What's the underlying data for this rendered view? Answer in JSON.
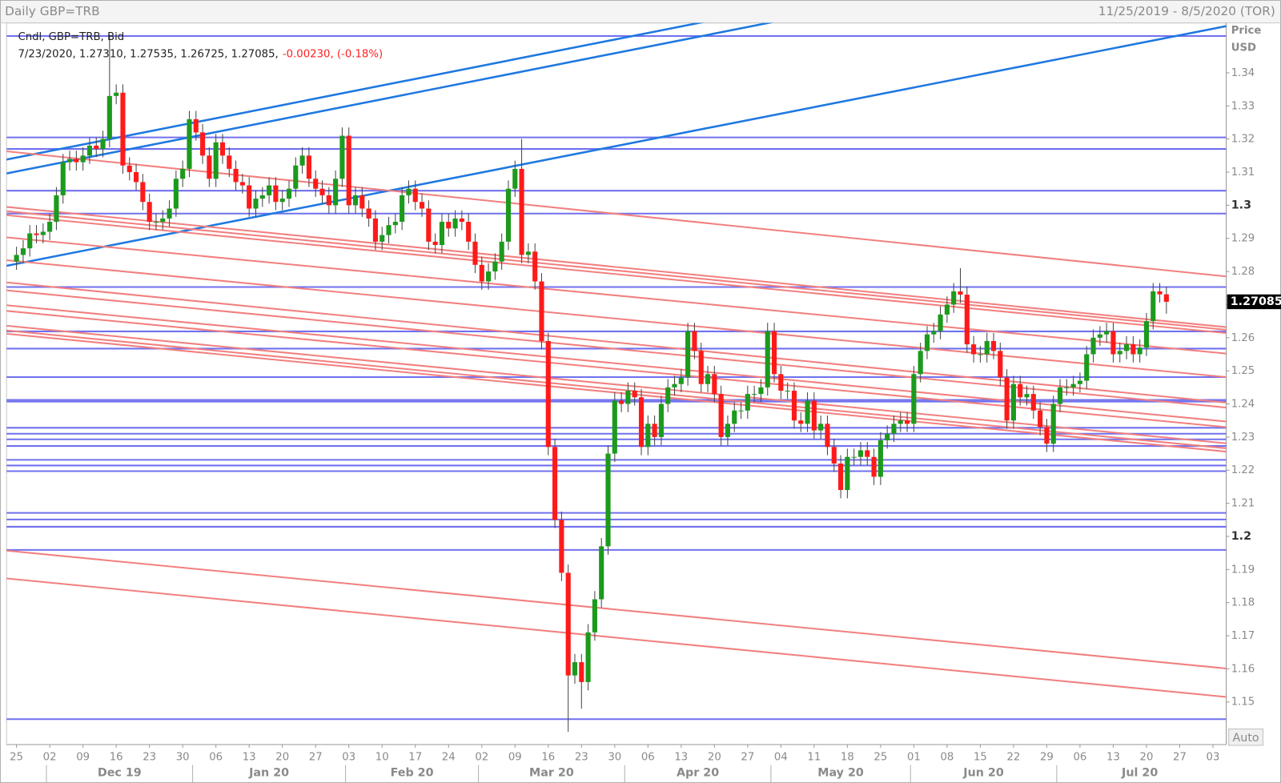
{
  "chart_data": {
    "type": "candlestick",
    "title": "Daily GBP=TRB",
    "date_range": "11/25/2019 - 8/5/2020 (TOR)",
    "legend": "Cndl, GBP=TRB, Bid",
    "info": "7/23/2020, 1.27310, 1.27535, 1.26725, 1.27085,",
    "change": "-0.00230, (-0.18%)",
    "y_label": "Price",
    "y_unit": "USD",
    "button": "Auto",
    "last_price_label": "1.27085",
    "up_color": "#1c9a1c",
    "down_color": "#ff1a1a",
    "xlim": [
      -1.5,
      182
    ],
    "ylim": [
      1.13713,
      1.35507
    ],
    "yticks": [
      1.15,
      1.16,
      1.17,
      1.18,
      1.19,
      1.2,
      1.21,
      1.22,
      1.23,
      1.24,
      1.25,
      1.26,
      1.27,
      1.28,
      1.29,
      1.3,
      1.31,
      1.32,
      1.33,
      1.34
    ],
    "xticks": [
      {
        "value": 0,
        "label": "25"
      },
      {
        "value": 5,
        "label": "02"
      },
      {
        "value": 10,
        "label": "09"
      },
      {
        "value": 15,
        "label": "16"
      },
      {
        "value": 20,
        "label": "23"
      },
      {
        "value": 25,
        "label": "30"
      },
      {
        "value": 30,
        "label": "06"
      },
      {
        "value": 35,
        "label": "13"
      },
      {
        "value": 40,
        "label": "20"
      },
      {
        "value": 45,
        "label": "27"
      },
      {
        "value": 50,
        "label": "03"
      },
      {
        "value": 55,
        "label": "10"
      },
      {
        "value": 60,
        "label": "17"
      },
      {
        "value": 65,
        "label": "24"
      },
      {
        "value": 70,
        "label": "02"
      },
      {
        "value": 75,
        "label": "09"
      },
      {
        "value": 80,
        "label": "16"
      },
      {
        "value": 85,
        "label": "23"
      },
      {
        "value": 90,
        "label": "30"
      },
      {
        "value": 95,
        "label": "06"
      },
      {
        "value": 100,
        "label": "13"
      },
      {
        "value": 105,
        "label": "20"
      },
      {
        "value": 110,
        "label": "27"
      },
      {
        "value": 115,
        "label": "04"
      },
      {
        "value": 120,
        "label": "11"
      },
      {
        "value": 125,
        "label": "18"
      },
      {
        "value": 130,
        "label": "25"
      },
      {
        "value": 135,
        "label": "01"
      },
      {
        "value": 140,
        "label": "08"
      },
      {
        "value": 145,
        "label": "15"
      },
      {
        "value": 150,
        "label": "22"
      },
      {
        "value": 155,
        "label": "29"
      },
      {
        "value": 160,
        "label": "06"
      },
      {
        "value": 165,
        "label": "13"
      },
      {
        "value": 170,
        "label": "20"
      },
      {
        "value": 175,
        "label": "27"
      },
      {
        "value": 180,
        "label": "03"
      }
    ],
    "month_ticks": [
      {
        "value": 5,
        "label": "Dec 19"
      },
      {
        "value": 27,
        "label": "Jan 20"
      },
      {
        "value": 50,
        "label": "Feb 20"
      },
      {
        "value": 70,
        "label": "Mar 20"
      },
      {
        "value": 92,
        "label": "Apr 20"
      },
      {
        "value": 114,
        "label": "May 20"
      },
      {
        "value": 135,
        "label": "Jun 20"
      },
      {
        "value": 157,
        "label": "Jul 20"
      }
    ],
    "hlines": {
      "color": "#7070ee",
      "values": [
        1.3511,
        1.3205,
        1.317,
        1.3044,
        1.2975,
        1.2753,
        1.2619,
        1.2567,
        1.2481,
        1.2412,
        1.2407,
        1.2328,
        1.231,
        1.2293,
        1.2273,
        1.2231,
        1.2214,
        1.2197,
        1.2071,
        1.2051,
        1.2029,
        1.1959,
        1.1448
      ]
    },
    "trendlines": [
      {
        "color": "#1f78e0",
        "lines": [
          [
            1.3138,
            1.3865
          ],
          [
            1.3096,
            1.3824
          ],
          [
            1.2817,
            1.3541
          ]
        ]
      },
      {
        "color": "#f27f7f",
        "lines": [
          [
            1.3163,
            1.2785
          ],
          [
            1.2995,
            1.2632
          ],
          [
            1.2982,
            1.2624
          ],
          [
            1.297,
            1.2614
          ],
          [
            1.2903,
            1.2552
          ],
          [
            1.2834,
            1.2481
          ],
          [
            1.2767,
            1.2404
          ],
          [
            1.2743,
            1.2389
          ],
          [
            1.2698,
            1.2347
          ],
          [
            1.2681,
            1.233
          ],
          [
            1.2636,
            1.2281
          ],
          [
            1.2622,
            1.2266
          ],
          [
            1.2612,
            1.2256
          ],
          [
            1.1957,
            1.1601
          ],
          [
            1.1873,
            1.1515
          ]
        ]
      }
    ],
    "open": [
      1.283,
      1.285,
      1.287,
      1.2915,
      1.291,
      1.292,
      1.295,
      1.303,
      1.313,
      1.314,
      1.313,
      1.315,
      1.318,
      1.317,
      1.32,
      1.333,
      1.334,
      1.312,
      1.31,
      1.307,
      1.301,
      1.295,
      1.295,
      1.296,
      1.299,
      1.308,
      1.311,
      1.326,
      1.322,
      1.315,
      1.308,
      1.319,
      1.315,
      1.311,
      1.307,
      1.306,
      1.299,
      1.302,
      1.303,
      1.306,
      1.301,
      1.302,
      1.305,
      1.312,
      1.315,
      1.308,
      1.305,
      1.303,
      1.3,
      1.308,
      1.321,
      1.3,
      1.303,
      1.299,
      1.296,
      1.289,
      1.291,
      1.294,
      1.295,
      1.303,
      1.305,
      1.301,
      1.299,
      1.289,
      1.288,
      1.295,
      1.293,
      1.296,
      1.295,
      1.289,
      1.282,
      1.277,
      1.28,
      1.283,
      1.289,
      1.305,
      1.311,
      1.285,
      1.286,
      1.277,
      1.259,
      1.227,
      1.205,
      1.189,
      1.158,
      1.162,
      1.156,
      1.171,
      1.181,
      1.197,
      1.225,
      1.241,
      1.24,
      1.244,
      1.242,
      1.227,
      1.234,
      1.23,
      1.24,
      1.245,
      1.246,
      1.248,
      1.262,
      1.256,
      1.246,
      1.249,
      1.243,
      1.23,
      1.234,
      1.238,
      1.238,
      1.243,
      1.243,
      1.245,
      1.262,
      1.249,
      1.244,
      1.244,
      1.235,
      1.234,
      1.241,
      1.232,
      1.234,
      1.227,
      1.222,
      1.214,
      1.224,
      1.224,
      1.226,
      1.224,
      1.218,
      1.229,
      1.231,
      1.234,
      1.235,
      1.234,
      1.249,
      1.256,
      1.261,
      1.262,
      1.267,
      1.27,
      1.274,
      1.273,
      1.258,
      1.255,
      1.255,
      1.259,
      1.256,
      1.248,
      1.235,
      1.246,
      1.242,
      1.243,
      1.238,
      1.233,
      1.228,
      1.24,
      1.245,
      1.245,
      1.246,
      1.247,
      1.255,
      1.26,
      1.261,
      1.262,
      1.255,
      1.256,
      1.258,
      1.255,
      1.257,
      1.265,
      1.274,
      1.2731
    ],
    "high": [
      1.2875,
      1.2895,
      1.294,
      1.294,
      1.2945,
      1.2975,
      1.3055,
      1.3155,
      1.3165,
      1.3165,
      1.3175,
      1.3205,
      1.3205,
      1.3225,
      1.3515,
      1.3365,
      1.3365,
      1.3145,
      1.3125,
      1.3095,
      1.3035,
      1.2975,
      1.2985,
      1.3015,
      1.3105,
      1.3135,
      1.3285,
      1.3285,
      1.3245,
      1.3175,
      1.3215,
      1.3215,
      1.3175,
      1.3135,
      1.3095,
      1.3085,
      1.3045,
      1.3055,
      1.3085,
      1.3085,
      1.3045,
      1.3075,
      1.3145,
      1.3175,
      1.3175,
      1.3105,
      1.3075,
      1.3055,
      1.3105,
      1.3235,
      1.3235,
      1.3055,
      1.3055,
      1.3015,
      1.2985,
      1.2935,
      1.2965,
      1.2975,
      1.3055,
      1.3075,
      1.3075,
      1.3035,
      1.3015,
      1.2915,
      1.2975,
      1.2975,
      1.2985,
      1.2985,
      1.2975,
      1.2915,
      1.2845,
      1.2825,
      1.2855,
      1.2915,
      1.3075,
      1.3135,
      1.32,
      1.2885,
      1.2885,
      1.2795,
      1.2615,
      1.2295,
      1.2075,
      1.1915,
      1.1645,
      1.1645,
      1.1735,
      1.1835,
      1.1995,
      1.2275,
      1.2435,
      1.2435,
      1.2465,
      1.2465,
      1.2445,
      1.2365,
      1.2365,
      1.2425,
      1.2475,
      1.2485,
      1.2505,
      1.2645,
      1.2645,
      1.2585,
      1.2515,
      1.2515,
      1.2455,
      1.2365,
      1.2405,
      1.2405,
      1.2455,
      1.2455,
      1.2475,
      1.2645,
      1.2645,
      1.2515,
      1.2465,
      1.2465,
      1.2375,
      1.2435,
      1.2435,
      1.2365,
      1.2365,
      1.2295,
      1.2245,
      1.2265,
      1.2265,
      1.2285,
      1.2285,
      1.2265,
      1.2315,
      1.2335,
      1.2365,
      1.2375,
      1.2375,
      1.2515,
      1.2585,
      1.2635,
      1.2645,
      1.2695,
      1.2725,
      1.2765,
      1.281,
      1.2755,
      1.2605,
      1.2575,
      1.2615,
      1.2615,
      1.2585,
      1.2505,
      1.2485,
      1.2485,
      1.2455,
      1.2455,
      1.2405,
      1.2355,
      1.2425,
      1.2475,
      1.2475,
      1.2485,
      1.2495,
      1.2575,
      1.2625,
      1.2635,
      1.2645,
      1.2645,
      1.2585,
      1.2605,
      1.2605,
      1.2595,
      1.2675,
      1.2765,
      1.2765,
      1.27535
    ],
    "low": [
      1.2805,
      1.2825,
      1.2845,
      1.2885,
      1.2885,
      1.2895,
      1.2925,
      1.3005,
      1.3105,
      1.3105,
      1.3105,
      1.3125,
      1.3145,
      1.3145,
      1.3175,
      1.3305,
      1.3095,
      1.3075,
      1.3045,
      1.2985,
      1.2925,
      1.2925,
      1.2925,
      1.2935,
      1.2965,
      1.3055,
      1.3085,
      1.3195,
      1.3125,
      1.3055,
      1.3055,
      1.3125,
      1.3085,
      1.3045,
      1.3035,
      1.2965,
      1.2965,
      1.2995,
      1.3005,
      1.2985,
      1.2985,
      1.2995,
      1.3025,
      1.3095,
      1.3055,
      1.3025,
      1.3005,
      1.2975,
      1.2975,
      1.3055,
      1.2975,
      1.2975,
      1.2965,
      1.2935,
      1.2865,
      1.2865,
      1.2885,
      1.2915,
      1.2925,
      1.3005,
      1.2985,
      1.2965,
      1.2865,
      1.2855,
      1.2855,
      1.2905,
      1.2905,
      1.2925,
      1.2865,
      1.2795,
      1.2745,
      1.2745,
      1.2775,
      1.2805,
      1.2865,
      1.3025,
      1.2825,
      1.2825,
      1.2745,
      1.2565,
      1.2245,
      1.2025,
      1.1865,
      1.141,
      1.1555,
      1.148,
      1.1535,
      1.1685,
      1.1785,
      1.1945,
      1.2225,
      1.2375,
      1.2375,
      1.2395,
      1.2245,
      1.2245,
      1.2275,
      1.2275,
      1.2375,
      1.2425,
      1.2435,
      1.2455,
      1.2535,
      1.2435,
      1.2435,
      1.2405,
      1.2275,
      1.2275,
      1.2315,
      1.2355,
      1.2355,
      1.2405,
      1.2405,
      1.2425,
      1.2465,
      1.2415,
      1.2415,
      1.2325,
      1.2315,
      1.2315,
      1.2295,
      1.2295,
      1.2245,
      1.2195,
      1.2115,
      1.2115,
      1.2215,
      1.2215,
      1.2215,
      1.2155,
      1.2155,
      1.2265,
      1.2285,
      1.2315,
      1.2315,
      1.2315,
      1.2465,
      1.2535,
      1.2585,
      1.2595,
      1.2645,
      1.2675,
      1.2705,
      1.2555,
      1.2525,
      1.2525,
      1.2525,
      1.2535,
      1.2455,
      1.2325,
      1.2325,
      1.2395,
      1.2395,
      1.2355,
      1.2305,
      1.2255,
      1.2255,
      1.2375,
      1.2425,
      1.2425,
      1.2435,
      1.2445,
      1.2525,
      1.2575,
      1.2585,
      1.2525,
      1.2525,
      1.2535,
      1.2525,
      1.2525,
      1.2545,
      1.2625,
      1.2706,
      1.26725
    ],
    "close": [
      1.285,
      1.287,
      1.2915,
      1.291,
      1.292,
      1.295,
      1.303,
      1.313,
      1.314,
      1.313,
      1.315,
      1.318,
      1.317,
      1.32,
      1.333,
      1.334,
      1.312,
      1.31,
      1.307,
      1.301,
      1.295,
      1.295,
      1.296,
      1.299,
      1.308,
      1.311,
      1.326,
      1.322,
      1.315,
      1.308,
      1.319,
      1.315,
      1.311,
      1.307,
      1.306,
      1.299,
      1.302,
      1.303,
      1.306,
      1.301,
      1.302,
      1.305,
      1.312,
      1.315,
      1.308,
      1.305,
      1.303,
      1.3,
      1.308,
      1.321,
      1.3,
      1.303,
      1.299,
      1.296,
      1.289,
      1.291,
      1.294,
      1.295,
      1.303,
      1.305,
      1.301,
      1.299,
      1.289,
      1.288,
      1.295,
      1.293,
      1.296,
      1.295,
      1.289,
      1.282,
      1.277,
      1.28,
      1.283,
      1.289,
      1.305,
      1.311,
      1.285,
      1.286,
      1.277,
      1.259,
      1.227,
      1.205,
      1.189,
      1.158,
      1.162,
      1.156,
      1.171,
      1.181,
      1.197,
      1.225,
      1.241,
      1.24,
      1.244,
      1.242,
      1.227,
      1.234,
      1.23,
      1.24,
      1.245,
      1.246,
      1.248,
      1.262,
      1.256,
      1.246,
      1.249,
      1.243,
      1.23,
      1.234,
      1.238,
      1.238,
      1.243,
      1.243,
      1.245,
      1.262,
      1.249,
      1.244,
      1.244,
      1.235,
      1.234,
      1.241,
      1.232,
      1.234,
      1.227,
      1.222,
      1.214,
      1.224,
      1.224,
      1.226,
      1.224,
      1.218,
      1.229,
      1.231,
      1.234,
      1.235,
      1.234,
      1.249,
      1.256,
      1.261,
      1.262,
      1.267,
      1.27,
      1.274,
      1.273,
      1.258,
      1.255,
      1.255,
      1.259,
      1.256,
      1.248,
      1.235,
      1.246,
      1.242,
      1.243,
      1.238,
      1.233,
      1.228,
      1.24,
      1.245,
      1.245,
      1.246,
      1.247,
      1.255,
      1.26,
      1.261,
      1.262,
      1.255,
      1.256,
      1.258,
      1.255,
      1.257,
      1.265,
      1.274,
      1.2731,
      1.27085
    ]
  }
}
